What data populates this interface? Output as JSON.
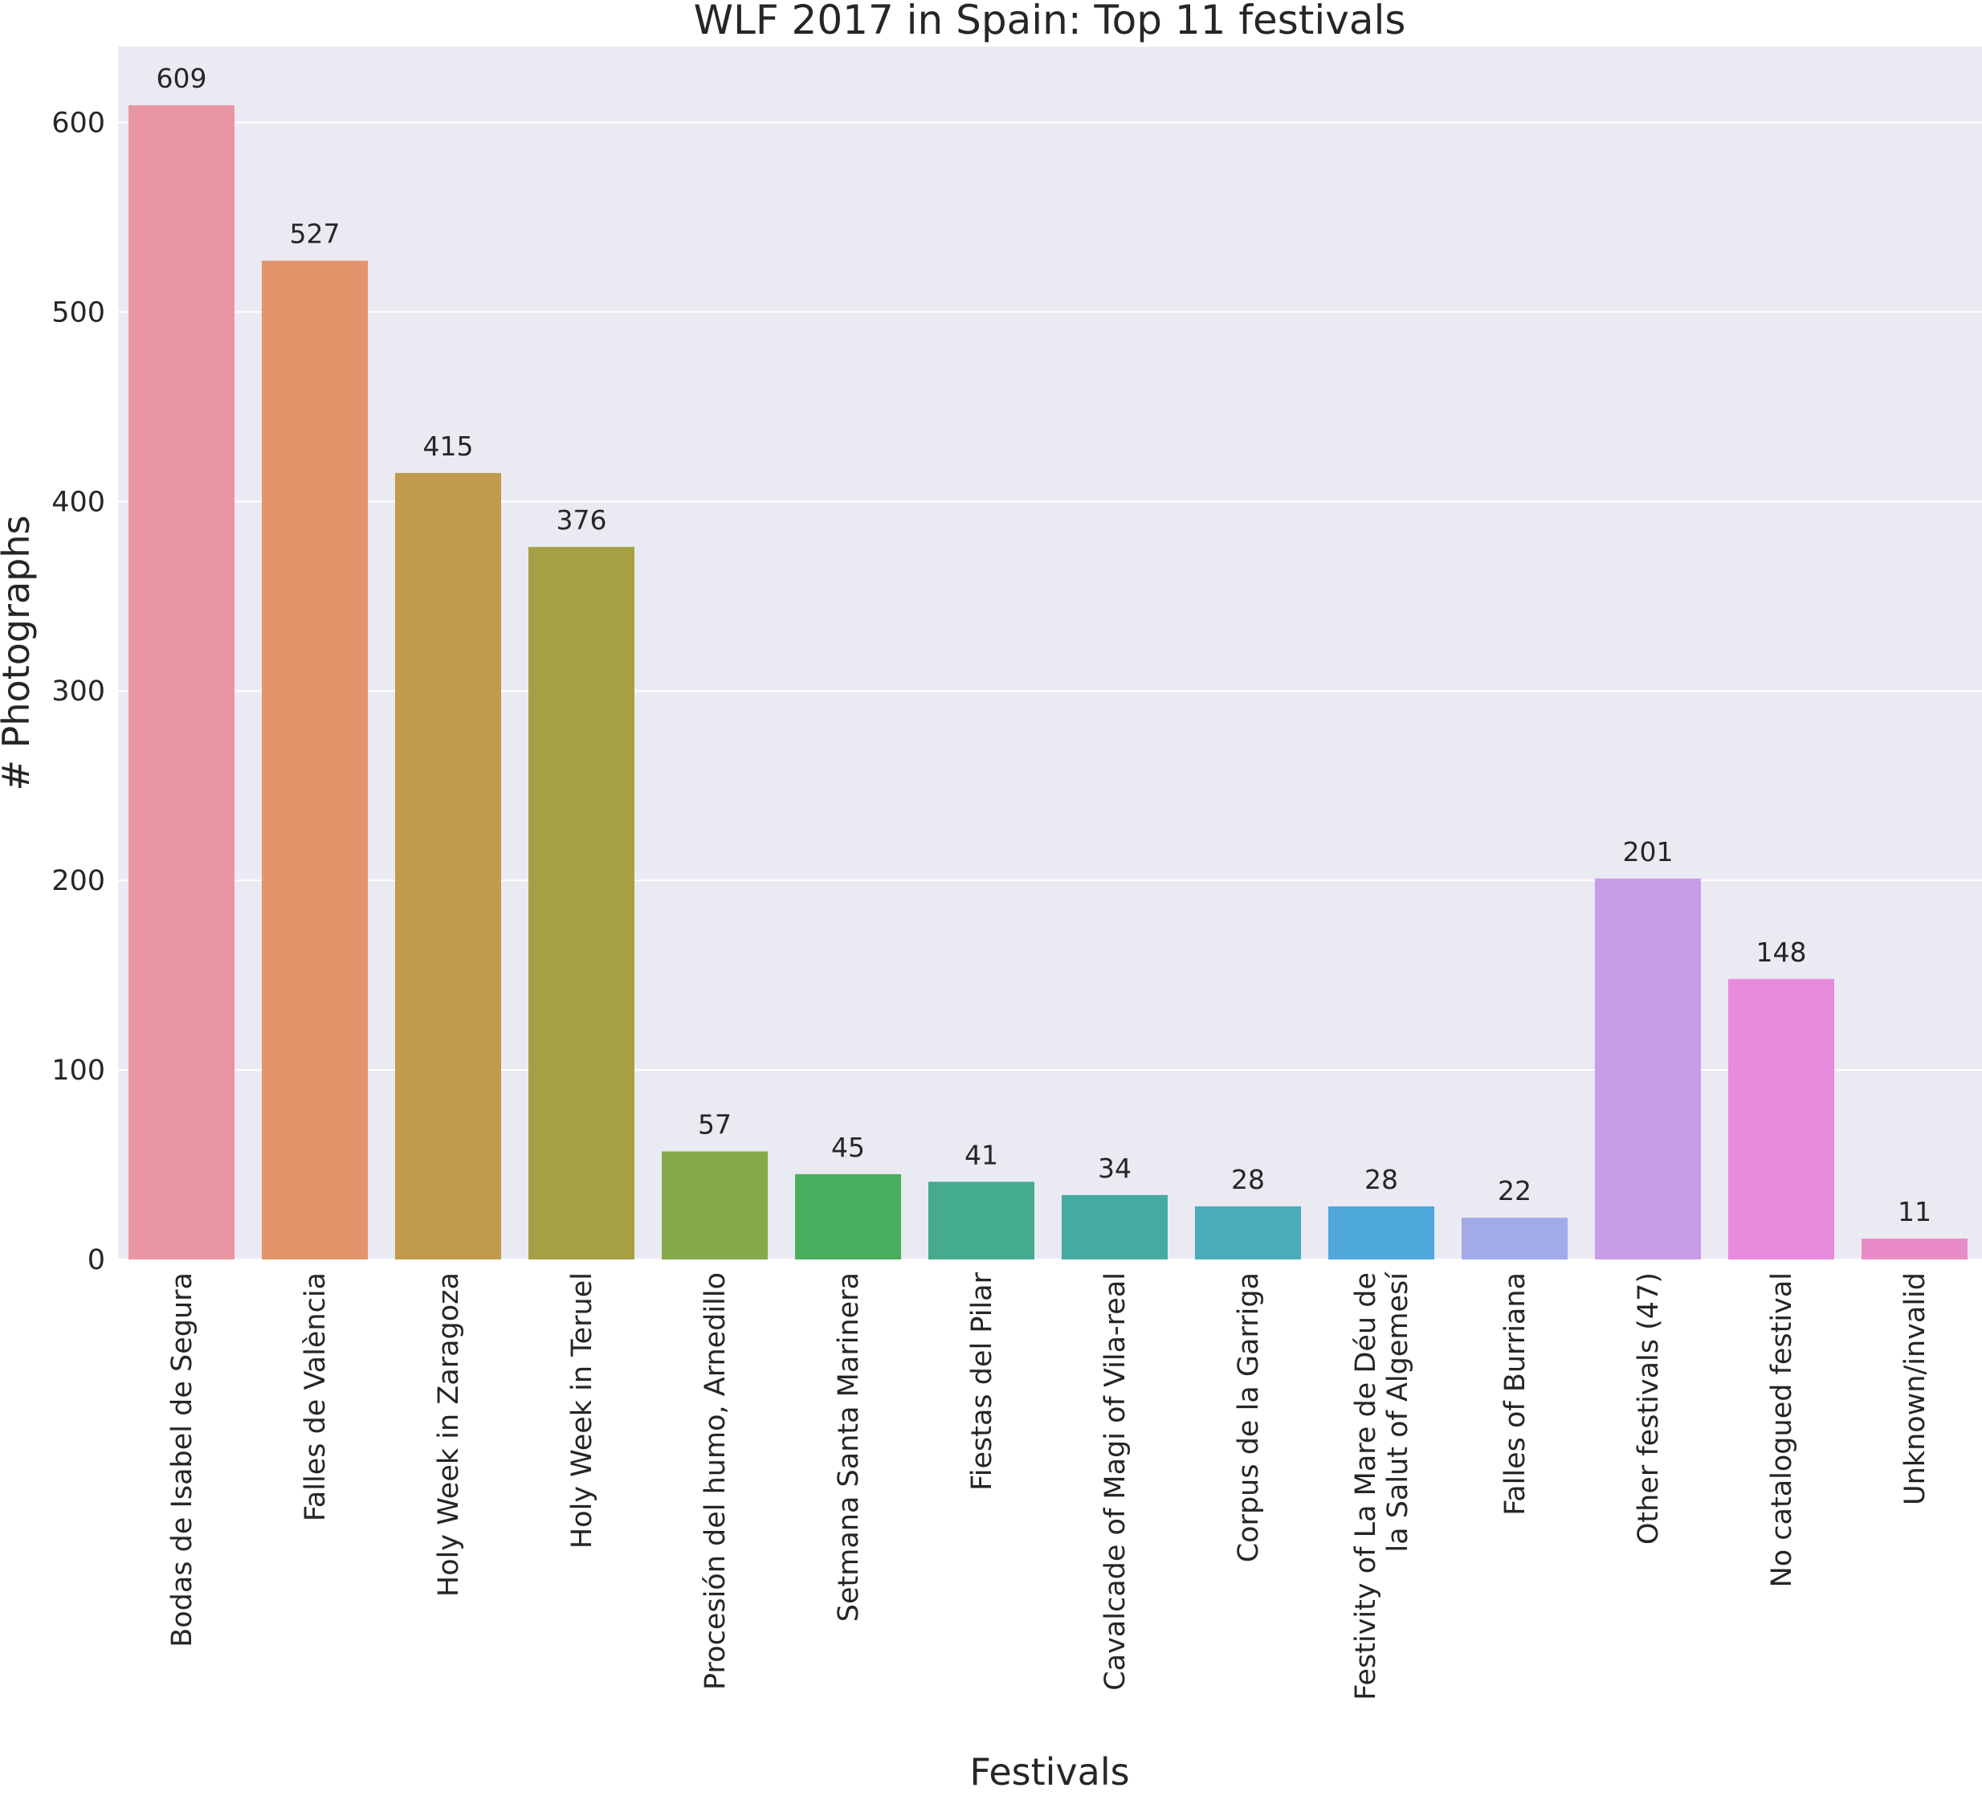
{
  "chart_data": {
    "type": "bar",
    "title": "WLF 2017 in Spain: Top 11 festivals",
    "xlabel": "Festivals",
    "ylabel": "# Photographs",
    "ylim": [
      0,
      640
    ],
    "yticks": [
      0,
      100,
      200,
      300,
      400,
      500,
      600
    ],
    "grid": true,
    "legend": "none",
    "background_color": "#eaeaf2",
    "categories": [
      [
        "Bodas de Isabel de Segura"
      ],
      [
        "Falles de València"
      ],
      [
        "Holy Week in Zaragoza"
      ],
      [
        "Holy Week in Teruel"
      ],
      [
        "Procesión del humo, Arnedillo"
      ],
      [
        "Setmana Santa Marinera"
      ],
      [
        "Fiestas del Pilar"
      ],
      [
        "Cavalcade of Magi of Vila-real"
      ],
      [
        "Corpus de la Garriga"
      ],
      [
        "Festivity of La Mare de Déu de",
        "la Salut of Algemesí"
      ],
      [
        "Falles of Burriana"
      ],
      [
        "Other festivals (47)"
      ],
      [
        "No catalogued festival"
      ],
      [
        "Unknown/invalid"
      ]
    ],
    "values": [
      609,
      527,
      415,
      376,
      57,
      45,
      41,
      34,
      28,
      28,
      22,
      201,
      148,
      11
    ],
    "colors": [
      "#e995a3",
      "#e2956b",
      "#c19b4b",
      "#a6a045",
      "#86aa4a",
      "#49ae5e",
      "#45ab8e",
      "#45aaa0",
      "#4babb8",
      "#4ea8d9",
      "#a2aae9",
      "#c89de8",
      "#e88ade",
      "#e98bc6"
    ]
  }
}
